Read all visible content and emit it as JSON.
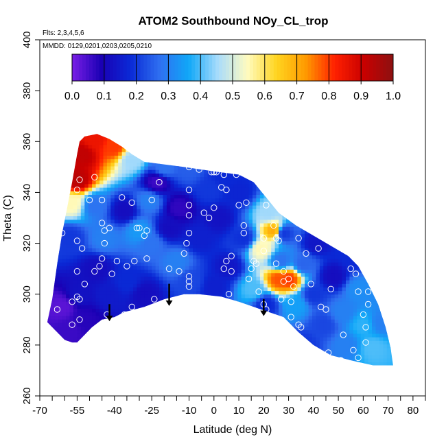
{
  "chart_data": {
    "type": "heatmap",
    "title": "ATOM2 Southbound NOy_CL_trop",
    "annotations": {
      "flights": "Flts: 2,3,4,5,6",
      "dates": "MMDD: 0129,0201,0203,0205,0210"
    },
    "xlabel": "Latitude (deg N)",
    "ylabel": "Theta (C)",
    "xlim": [
      -70,
      85
    ],
    "ylim": [
      260,
      400
    ],
    "x_ticks": [
      -70,
      -55,
      -40,
      -25,
      -10,
      0,
      10,
      20,
      30,
      40,
      50,
      60,
      70,
      80
    ],
    "x_tick_labels": [
      "-70",
      "-55",
      "-40",
      "-25",
      "-10",
      "0",
      "10",
      "20",
      "30",
      "40",
      "50",
      "60",
      "70",
      "80"
    ],
    "x_minor_ticks": [
      -65,
      -60,
      -50,
      -45,
      -35,
      -30,
      -20,
      -15,
      -5,
      5,
      15,
      25,
      35,
      45,
      55,
      65,
      75,
      85
    ],
    "y_ticks": [
      260,
      280,
      300,
      320,
      340,
      360,
      380,
      400
    ],
    "y_tick_labels": [
      "260",
      "280",
      "300",
      "320",
      "340",
      "360",
      "380",
      "400"
    ],
    "colorbar": {
      "range": [
        0,
        1
      ],
      "ticks": [
        0,
        0.1,
        0.2,
        0.3,
        0.4,
        0.5,
        0.6,
        0.7,
        0.8,
        0.9,
        1.0
      ],
      "tick_labels": [
        "0.0",
        "0.1",
        "0.2",
        "0.3",
        "0.4",
        "0.5",
        "0.6",
        "0.7",
        "0.8",
        "0.9",
        "1.0"
      ],
      "colors": [
        "#7a1ee6",
        "#1a00b4",
        "#0a2ad6",
        "#2f6ff0",
        "#10a8f8",
        "#a9dcfb",
        "#fffbc0",
        "#ffd520",
        "#ff9a00",
        "#ff2000",
        "#c80000",
        "#8c1111"
      ]
    },
    "field_outline": [
      [
        -57,
        344
      ],
      [
        -55,
        355
      ],
      [
        -54,
        360
      ],
      [
        -52,
        362
      ],
      [
        -47,
        363
      ],
      [
        -42,
        361
      ],
      [
        -37,
        358
      ],
      [
        -33,
        355
      ],
      [
        -28,
        352
      ],
      [
        -20,
        351
      ],
      [
        -12,
        350
      ],
      [
        -5,
        349
      ],
      [
        2,
        348
      ],
      [
        10,
        347
      ],
      [
        16,
        344
      ],
      [
        21,
        338
      ],
      [
        26,
        332
      ],
      [
        33,
        327
      ],
      [
        40,
        323
      ],
      [
        47,
        319
      ],
      [
        54,
        315
      ],
      [
        58,
        311
      ],
      [
        62,
        304
      ],
      [
        66,
        296
      ],
      [
        69,
        287
      ],
      [
        71,
        279
      ],
      [
        72,
        272
      ],
      [
        64,
        272
      ],
      [
        55,
        274
      ],
      [
        47,
        276
      ],
      [
        40,
        280
      ],
      [
        34,
        285
      ],
      [
        28,
        291
      ],
      [
        22,
        293
      ],
      [
        16,
        295
      ],
      [
        10,
        297
      ],
      [
        3,
        299
      ],
      [
        -6,
        300
      ],
      [
        -12,
        300
      ],
      [
        -20,
        298
      ],
      [
        -28,
        295
      ],
      [
        -36,
        293
      ],
      [
        -40,
        291
      ],
      [
        -45,
        290
      ],
      [
        -49,
        287
      ],
      [
        -52,
        284
      ],
      [
        -55,
        281
      ],
      [
        -57,
        281
      ],
      [
        -60,
        282
      ],
      [
        -64,
        286
      ],
      [
        -67,
        289
      ],
      [
        -65,
        298
      ],
      [
        -63,
        312
      ],
      [
        -61,
        324
      ],
      [
        -59,
        334
      ]
    ],
    "control_points": [
      {
        "x": -61,
        "y": 295,
        "v": 0.03
      },
      {
        "x": -58,
        "y": 286,
        "v": 0.06
      },
      {
        "x": -54,
        "y": 300,
        "v": 0.13
      },
      {
        "x": -55,
        "y": 345,
        "v": 0.93
      },
      {
        "x": -53,
        "y": 355,
        "v": 0.92
      },
      {
        "x": -48,
        "y": 361,
        "v": 0.85
      },
      {
        "x": -40,
        "y": 358,
        "v": 0.8
      },
      {
        "x": -33,
        "y": 353,
        "v": 0.45
      },
      {
        "x": -20,
        "y": 350,
        "v": 0.28
      },
      {
        "x": -10,
        "y": 349,
        "v": 0.25
      },
      {
        "x": 4,
        "y": 347,
        "v": 0.18
      },
      {
        "x": -57,
        "y": 336,
        "v": 0.55
      },
      {
        "x": -58,
        "y": 322,
        "v": 0.2
      },
      {
        "x": -48,
        "y": 335,
        "v": 0.28
      },
      {
        "x": -44,
        "y": 322,
        "v": 0.3
      },
      {
        "x": -47,
        "y": 310,
        "v": 0.12
      },
      {
        "x": -42,
        "y": 300,
        "v": 0.15
      },
      {
        "x": -36,
        "y": 333,
        "v": 0.12
      },
      {
        "x": -30,
        "y": 325,
        "v": 0.34
      },
      {
        "x": -26,
        "y": 337,
        "v": 0.3
      },
      {
        "x": -25,
        "y": 320,
        "v": 0.28
      },
      {
        "x": -23,
        "y": 344,
        "v": 0.06
      },
      {
        "x": -18,
        "y": 326,
        "v": 0.12
      },
      {
        "x": -14,
        "y": 334,
        "v": 0.07
      },
      {
        "x": -15,
        "y": 313,
        "v": 0.3
      },
      {
        "x": -9,
        "y": 305,
        "v": 0.22
      },
      {
        "x": -6,
        "y": 322,
        "v": 0.16
      },
      {
        "x": -2,
        "y": 341,
        "v": 0.2
      },
      {
        "x": 2,
        "y": 330,
        "v": 0.13
      },
      {
        "x": 6,
        "y": 311,
        "v": 0.14
      },
      {
        "x": 10,
        "y": 340,
        "v": 0.17
      },
      {
        "x": 12,
        "y": 322,
        "v": 0.19
      },
      {
        "x": 16,
        "y": 302,
        "v": 0.4
      },
      {
        "x": 19,
        "y": 318,
        "v": 0.55
      },
      {
        "x": 22,
        "y": 332,
        "v": 0.45
      },
      {
        "x": 24,
        "y": 325,
        "v": 0.7
      },
      {
        "x": 26,
        "y": 306,
        "v": 0.78
      },
      {
        "x": 30,
        "y": 306,
        "v": 0.8
      },
      {
        "x": 27,
        "y": 313,
        "v": 0.28
      },
      {
        "x": 28,
        "y": 324,
        "v": 0.2
      },
      {
        "x": 21,
        "y": 296,
        "v": 0.18
      },
      {
        "x": 33,
        "y": 296,
        "v": 0.35
      },
      {
        "x": 36,
        "y": 312,
        "v": 0.26
      },
      {
        "x": 40,
        "y": 300,
        "v": 0.2
      },
      {
        "x": 44,
        "y": 288,
        "v": 0.22
      },
      {
        "x": 48,
        "y": 307,
        "v": 0.12
      },
      {
        "x": 52,
        "y": 293,
        "v": 0.3
      },
      {
        "x": 53,
        "y": 280,
        "v": 0.3
      },
      {
        "x": 58,
        "y": 302,
        "v": 0.32
      },
      {
        "x": 60,
        "y": 288,
        "v": 0.38
      },
      {
        "x": 64,
        "y": 279,
        "v": 0.4
      },
      {
        "x": 67,
        "y": 289,
        "v": 0.3
      },
      {
        "x": 56,
        "y": 315,
        "v": 0.18
      },
      {
        "x": 41,
        "y": 320,
        "v": 0.14
      },
      {
        "x": 36,
        "y": 280,
        "v": 0.2
      },
      {
        "x": -35,
        "y": 305,
        "v": 0.18
      },
      {
        "x": -28,
        "y": 300,
        "v": 0.12
      },
      {
        "x": -52,
        "y": 290,
        "v": 0.08
      },
      {
        "x": 0,
        "y": 303,
        "v": 0.16
      }
    ],
    "sample_points": [
      [
        -61,
        324
      ],
      [
        -55,
        341
      ],
      [
        -54,
        345
      ],
      [
        -50,
        337
      ],
      [
        -45,
        337
      ],
      [
        -48,
        346
      ],
      [
        -44,
        325
      ],
      [
        -42,
        326
      ],
      [
        -45,
        328
      ],
      [
        -44,
        320
      ],
      [
        -45,
        314
      ],
      [
        -46,
        311
      ],
      [
        -39,
        313
      ],
      [
        -35,
        311
      ],
      [
        -32,
        313
      ],
      [
        -27,
        314
      ],
      [
        -31,
        326
      ],
      [
        -30,
        326
      ],
      [
        -28,
        323
      ],
      [
        -27,
        325
      ],
      [
        -25,
        337
      ],
      [
        -37,
        338
      ],
      [
        -33,
        336
      ],
      [
        -22,
        344
      ],
      [
        -48,
        309
      ],
      [
        -41,
        308
      ],
      [
        -57,
        297
      ],
      [
        -54,
        298
      ],
      [
        -55,
        299
      ],
      [
        -52,
        304
      ],
      [
        -55,
        309
      ],
      [
        -53,
        318
      ],
      [
        -55,
        321
      ],
      [
        -57,
        288
      ],
      [
        -54,
        290
      ],
      [
        -43,
        292
      ],
      [
        -36,
        292
      ],
      [
        -33,
        295
      ],
      [
        -24,
        298
      ],
      [
        -18,
        310
      ],
      [
        -14,
        309
      ],
      [
        -12,
        316
      ],
      [
        -11,
        320
      ],
      [
        -10,
        305
      ],
      [
        -10,
        307
      ],
      [
        -10,
        303
      ],
      [
        -10,
        350
      ],
      [
        -10,
        341
      ],
      [
        -10,
        335
      ],
      [
        -10,
        331
      ],
      [
        -10,
        324
      ],
      [
        -6,
        349
      ],
      [
        -1,
        348
      ],
      [
        0,
        348
      ],
      [
        1,
        348
      ],
      [
        3,
        342
      ],
      [
        4,
        347
      ],
      [
        0,
        334
      ],
      [
        -4,
        332
      ],
      [
        -2,
        330
      ],
      [
        5,
        341
      ],
      [
        9,
        347
      ],
      [
        11,
        348
      ],
      [
        10,
        335
      ],
      [
        13,
        336
      ],
      [
        12,
        327
      ],
      [
        7,
        315
      ],
      [
        4,
        310
      ],
      [
        5,
        313
      ],
      [
        6,
        300
      ],
      [
        7,
        309
      ],
      [
        12,
        324
      ],
      [
        15,
        310
      ],
      [
        14,
        306
      ],
      [
        16,
        313
      ],
      [
        17,
        312
      ],
      [
        18,
        301
      ],
      [
        20,
        296
      ],
      [
        21,
        294
      ],
      [
        20,
        317
      ],
      [
        20,
        322
      ],
      [
        21,
        335
      ],
      [
        24,
        327
      ],
      [
        25,
        322
      ],
      [
        25,
        312
      ],
      [
        26,
        321
      ],
      [
        28,
        309
      ],
      [
        28,
        305
      ],
      [
        27,
        298
      ],
      [
        30,
        306
      ],
      [
        31,
        297
      ],
      [
        32,
        303
      ],
      [
        34,
        322
      ],
      [
        31,
        291
      ],
      [
        34,
        288
      ],
      [
        35,
        287
      ],
      [
        39,
        304
      ],
      [
        43,
        295
      ],
      [
        45,
        294
      ],
      [
        46,
        277
      ],
      [
        51,
        274
      ],
      [
        52,
        284
      ],
      [
        55,
        310
      ],
      [
        57,
        308
      ],
      [
        58,
        301
      ],
      [
        60,
        292
      ],
      [
        61,
        287
      ],
      [
        62,
        296
      ],
      [
        62,
        301
      ],
      [
        61,
        281
      ],
      [
        58,
        275
      ],
      [
        56,
        278
      ],
      [
        47,
        302
      ],
      [
        42,
        318
      ],
      [
        37,
        316
      ],
      [
        44,
        327
      ],
      [
        -63,
        294
      ]
    ],
    "arrows": [
      -42,
      -18,
      20
    ]
  }
}
